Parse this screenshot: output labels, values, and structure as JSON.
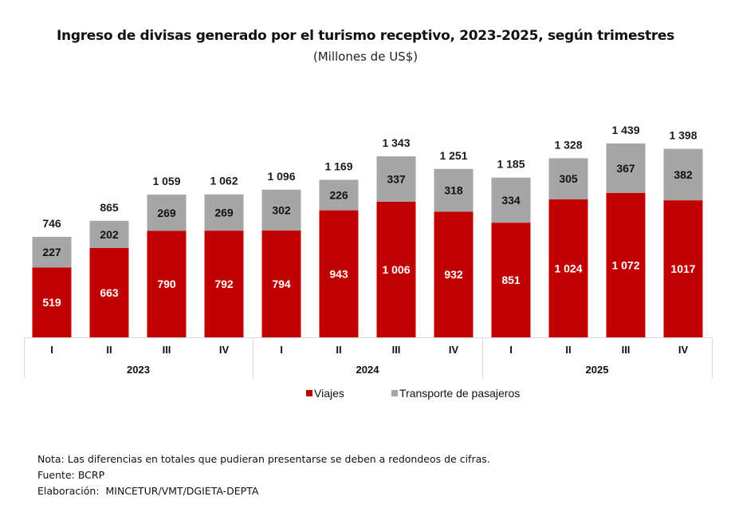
{
  "chart_data": {
    "type": "bar",
    "stacked": true,
    "title": "Ingreso de divisas generado por el turismo receptivo, 2023-2025, según trimestres",
    "subtitle": "(Millones de US$)",
    "xlabel": "",
    "ylabel": "",
    "ylim": [
      0,
      1500
    ],
    "grid": false,
    "legend_position": "bottom-center",
    "groups": [
      {
        "label": "2023",
        "categories": [
          "I",
          "II",
          "III",
          "IV"
        ]
      },
      {
        "label": "2024",
        "categories": [
          "I",
          "II",
          "III",
          "IV"
        ]
      },
      {
        "label": "2025",
        "categories": [
          "I",
          "II",
          "III",
          "IV"
        ]
      }
    ],
    "categories": [
      "2023-I",
      "2023-II",
      "2023-III",
      "2023-IV",
      "2024-I",
      "2024-II",
      "2024-III",
      "2024-IV",
      "2025-I",
      "2025-II",
      "2025-III",
      "2025-IV"
    ],
    "series": [
      {
        "name": "Viajes",
        "color": "#c00000",
        "values": [
          519,
          663,
          790,
          792,
          794,
          943,
          1006,
          932,
          851,
          1024,
          1072,
          1017
        ],
        "labels": [
          "519",
          "663",
          "790",
          "792",
          "794",
          "943",
          "1 006",
          "932",
          "851",
          "1 024",
          "1 072",
          "1017"
        ]
      },
      {
        "name": "Transporte de pasajeros",
        "color": "#a6a6a6",
        "values": [
          227,
          202,
          269,
          269,
          302,
          226,
          337,
          318,
          334,
          305,
          367,
          382
        ],
        "labels": [
          "227",
          "202",
          "269",
          "269",
          "302",
          "226",
          "337",
          "318",
          "334",
          "305",
          "367",
          "382"
        ]
      }
    ],
    "totals": [
      746,
      865,
      1059,
      1062,
      1096,
      1169,
      1343,
      1251,
      1185,
      1328,
      1439,
      1398
    ],
    "total_labels": [
      "746",
      "865",
      "1 059",
      "1 062",
      "1 096",
      "1 169",
      "1 343",
      "1 251",
      "1 185",
      "1 328",
      "1 439",
      "1 398"
    ]
  },
  "notes": {
    "nota": "Nota: Las diferencias en totales que pudieran presentarse se deben a redondeos de cifras.",
    "fuente": "Fuente: BCRP",
    "elaboracion": "Elaboración:  MINCETUR/VMT/DGIETA-DEPTA"
  }
}
